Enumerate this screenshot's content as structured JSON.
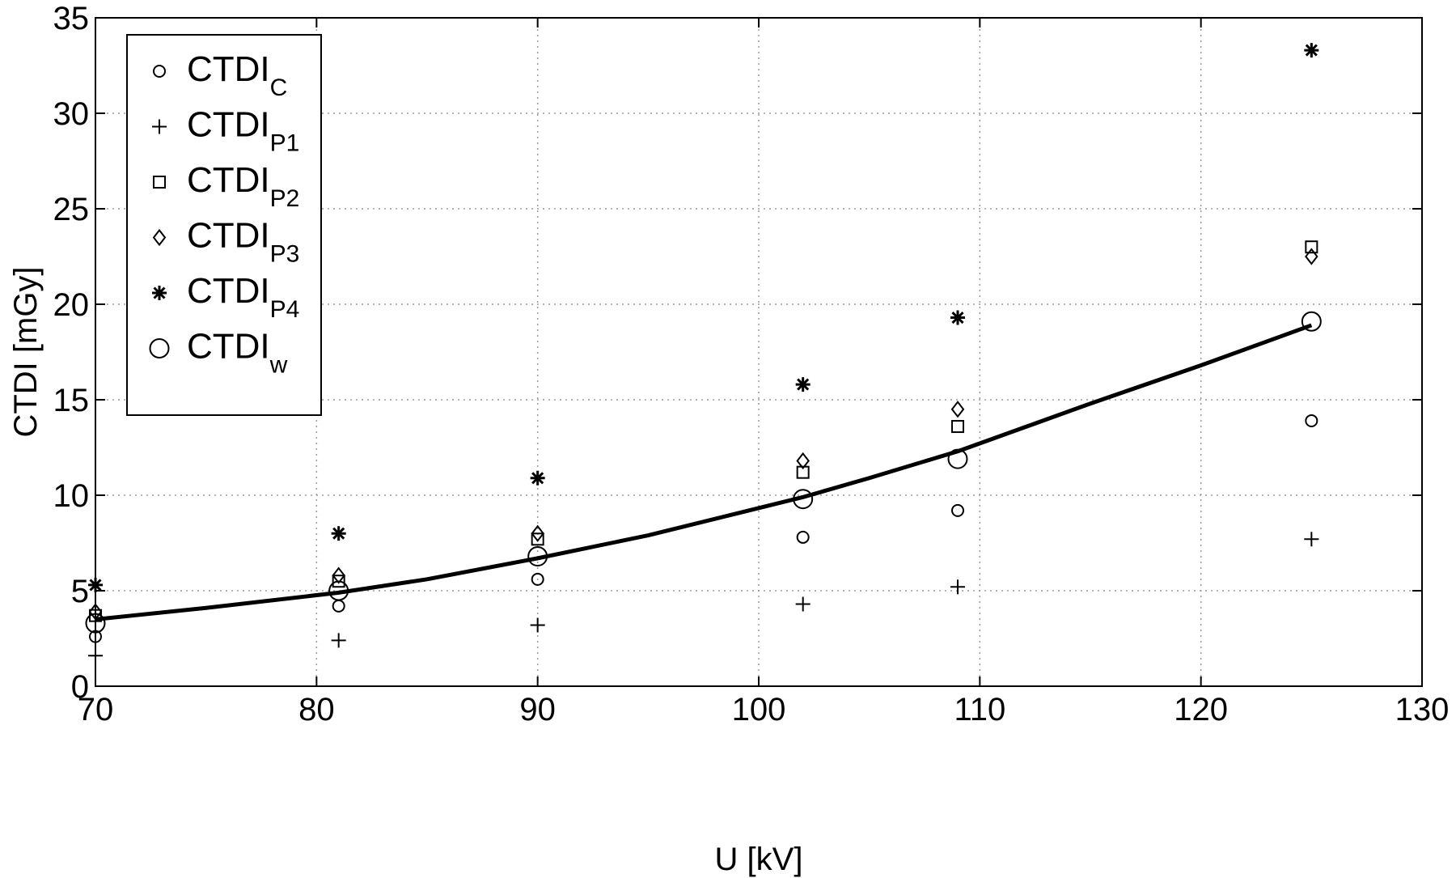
{
  "chart_data": {
    "type": "scatter",
    "xlabel": "U [kV]",
    "ylabel": "CTDI [mGy]",
    "xlim": [
      70,
      130
    ],
    "ylim": [
      0,
      35
    ],
    "x_ticks": [
      70,
      80,
      90,
      100,
      110,
      120,
      130
    ],
    "y_ticks": [
      0,
      5,
      10,
      15,
      20,
      25,
      30,
      35
    ],
    "grid": true,
    "legend_position": "top-left",
    "x": [
      70,
      81,
      90,
      102,
      109,
      125
    ],
    "series": [
      {
        "name": "CTDI",
        "subscript": "C",
        "marker": "circle-small",
        "values": [
          2.6,
          4.2,
          5.6,
          7.8,
          9.2,
          13.9
        ]
      },
      {
        "name": "CTDI",
        "subscript": "P1",
        "marker": "plus",
        "values": [
          1.6,
          2.4,
          3.2,
          4.3,
          5.2,
          7.7
        ]
      },
      {
        "name": "CTDI",
        "subscript": "P2",
        "marker": "square",
        "values": [
          3.7,
          5.5,
          7.7,
          11.2,
          13.6,
          23.0
        ]
      },
      {
        "name": "CTDI",
        "subscript": "P3",
        "marker": "diamond",
        "values": [
          3.9,
          5.8,
          8.0,
          11.8,
          14.5,
          22.5
        ]
      },
      {
        "name": "CTDI",
        "subscript": "P4",
        "marker": "asterisk",
        "values": [
          5.3,
          8.0,
          10.9,
          15.8,
          19.3,
          33.3
        ]
      },
      {
        "name": "CTDI",
        "subscript": "w",
        "marker": "circle-large",
        "values": [
          3.3,
          5.0,
          6.8,
          9.8,
          11.9,
          19.1
        ]
      }
    ],
    "fit_line": {
      "x": [
        70,
        75,
        81,
        85,
        90,
        95,
        102,
        105,
        109,
        115,
        120,
        125
      ],
      "y": [
        3.5,
        4.1,
        4.9,
        5.6,
        6.7,
        7.9,
        9.9,
        10.9,
        12.3,
        14.8,
        16.8,
        18.9
      ]
    }
  }
}
